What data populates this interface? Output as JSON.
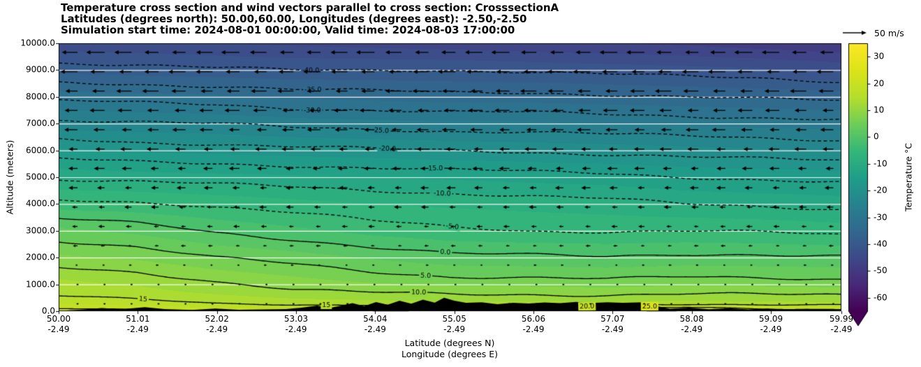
{
  "figure": {
    "title_line1": "Temperature cross section and wind vectors parallel to cross section: CrosssectionA",
    "title_line2": "Latitudes (degrees north): 50.00,60.00, Longitudes (degrees east): -2.50,-2.50",
    "title_line3": "Simulation start time: 2024-08-01 00:00:00, Valid time: 2024-08-03 17:00:00",
    "ylabel": "Altitude (meters)",
    "xlabel_line1": "Latitude (degrees N)",
    "xlabel_line2": "Longitude (degrees E)",
    "colorbar_label": "Temperature °C",
    "quiver_key_label": "50 m/s"
  },
  "chart_data": {
    "type": "heatmap",
    "title": "Temperature cross section and wind vectors parallel to cross section: CrosssectionA",
    "x_axis": {
      "label": "Latitude (degrees N)",
      "label2": "Longitude (degrees E)",
      "min": 50.0,
      "max": 59.99,
      "tick_labels_latitude": [
        "50.00",
        "51.01",
        "52.02",
        "53.03",
        "54.04",
        "55.05",
        "56.06",
        "57.07",
        "58.08",
        "59.09",
        "59.99"
      ],
      "tick_labels_longitude": [
        "-2.49",
        "-2.49",
        "-2.49",
        "-2.49",
        "-2.49",
        "-2.49",
        "-2.49",
        "-2.49",
        "-2.49",
        "-2.49",
        "-2.49"
      ]
    },
    "y_axis": {
      "label": "Altitude (meters)",
      "min": 0,
      "max": 10000,
      "tick_labels": [
        "0.0",
        "1000.0",
        "2000.0",
        "3000.0",
        "4000.0",
        "5000.0",
        "6000.0",
        "7000.0",
        "8000.0",
        "9000.0",
        "10000.0"
      ]
    },
    "colorbar": {
      "label": "Temperature °C",
      "min": -65,
      "max": 35,
      "tick_values": [
        30,
        20,
        10,
        0,
        -10,
        -20,
        -30,
        -40,
        -50,
        -60
      ],
      "tick_labels": [
        "30",
        "20",
        "10",
        "0",
        "-10",
        "-20",
        "-30",
        "-40",
        "-50",
        "-60"
      ],
      "extend": "min"
    },
    "colormap_stops": [
      "#440154",
      "#482878",
      "#3e4989",
      "#31688e",
      "#26828e",
      "#1f9e89",
      "#35b779",
      "#6ece58",
      "#b5de2b",
      "#dce319",
      "#fde725"
    ],
    "temperature_grid": {
      "latitudes": [
        50,
        51,
        52,
        53,
        54,
        55,
        56,
        57,
        58,
        59,
        60
      ],
      "altitudes_m": [
        0,
        300,
        700,
        1200,
        2000,
        3000,
        4000,
        5000,
        6000,
        7000,
        8000,
        9000,
        10000
      ],
      "values_c": [
        [
          22,
          21,
          20,
          19,
          20,
          21,
          22,
          24,
          26,
          23,
          22
        ],
        [
          17,
          16,
          15,
          14,
          13.5,
          13,
          13,
          13,
          13.5,
          13,
          13
        ],
        [
          14,
          13.5,
          12,
          10.5,
          10,
          9.5,
          9.3,
          9,
          9.5,
          9.3,
          9
        ],
        [
          12.5,
          11.5,
          9.5,
          8,
          6.5,
          5.5,
          5.3,
          5,
          5.5,
          5.3,
          5
        ],
        [
          8,
          7,
          5,
          3.8,
          2.2,
          0.8,
          0.6,
          0.3,
          0.8,
          0.6,
          0.3
        ],
        [
          3.2,
          1.8,
          -0.3,
          -1.8,
          -3.5,
          -4.5,
          -5,
          -5.2,
          -5,
          -5.3,
          -6
        ],
        [
          -4,
          -4.5,
          -5.5,
          -6.5,
          -7.5,
          -8,
          -8.5,
          -9,
          -10,
          -10.5,
          -11
        ],
        [
          -10.5,
          -11,
          -11.5,
          -12,
          -12.5,
          -13,
          -13.5,
          -14,
          -15,
          -15.5,
          -16
        ],
        [
          -17,
          -18,
          -18.5,
          -19,
          -19.5,
          -20,
          -20.5,
          -21,
          -21.5,
          -22,
          -22.5
        ],
        [
          -24,
          -24.5,
          -25,
          -26,
          -26.5,
          -27,
          -27,
          -27.5,
          -28,
          -28.5,
          -29
        ],
        [
          -31,
          -31.5,
          -32,
          -33,
          -33.5,
          -34,
          -34,
          -34.5,
          -35,
          -35.5,
          -36
        ],
        [
          -38.5,
          -39,
          -39.5,
          -40,
          -40,
          -40,
          -40.5,
          -41,
          -41.5,
          -42,
          -43
        ],
        [
          -44,
          -44.5,
          -45,
          -45.5,
          -46,
          -46.5,
          -47,
          -47.5,
          -48,
          -49,
          -50
        ]
      ]
    },
    "contours": {
      "levels": [
        -40,
        -35,
        -30,
        -25,
        -20,
        -15,
        -10,
        -5,
        0,
        5,
        10,
        15,
        20,
        25
      ],
      "negative_style": "dashed",
      "positive_style": "solid",
      "labels": [
        {
          "level": -40,
          "text": "-40.0",
          "x_fracs": [
            0.322
          ]
        },
        {
          "level": -35,
          "text": "-35.0",
          "x_fracs": [
            0.325
          ]
        },
        {
          "level": -30,
          "text": "-30.0",
          "x_fracs": [
            0.324
          ]
        },
        {
          "level": -25,
          "text": "-25.0",
          "x_fracs": [
            0.411
          ]
        },
        {
          "level": -20,
          "text": "-20.0",
          "x_fracs": [
            0.42
          ]
        },
        {
          "level": -15,
          "text": "-15.0",
          "x_fracs": [
            0.48
          ]
        },
        {
          "level": -10,
          "text": "-10.0",
          "x_fracs": [
            0.49
          ]
        },
        {
          "level": -5,
          "text": "-5.0",
          "x_fracs": [
            0.503
          ]
        },
        {
          "level": 0,
          "text": "0.0",
          "x_fracs": [
            0.494
          ]
        },
        {
          "level": 5,
          "text": "5.0",
          "x_fracs": [
            0.469
          ]
        },
        {
          "level": 10,
          "text": "10.0",
          "x_fracs": [
            0.46
          ]
        },
        {
          "level": 15,
          "text": "15",
          "x_fracs": [
            0.108,
            0.342
          ]
        },
        {
          "level": 20,
          "text": "20.0",
          "x_fracs": [
            0.675
          ]
        },
        {
          "level": 25,
          "text": "25.0",
          "x_fracs": [
            0.755
          ]
        }
      ]
    },
    "terrain_profile": [
      [
        50,
        15
      ],
      [
        50.3,
        60
      ],
      [
        50.55,
        120
      ],
      [
        50.8,
        70
      ],
      [
        51.1,
        150
      ],
      [
        51.35,
        80
      ],
      [
        51.7,
        45
      ],
      [
        52.0,
        95
      ],
      [
        52.3,
        55
      ],
      [
        52.6,
        65
      ],
      [
        52.9,
        80
      ],
      [
        53.1,
        130
      ],
      [
        53.3,
        210
      ],
      [
        53.45,
        120
      ],
      [
        53.6,
        200
      ],
      [
        53.75,
        300
      ],
      [
        53.9,
        190
      ],
      [
        54.05,
        340
      ],
      [
        54.2,
        240
      ],
      [
        54.35,
        390
      ],
      [
        54.5,
        280
      ],
      [
        54.65,
        430
      ],
      [
        54.8,
        320
      ],
      [
        54.92,
        500
      ],
      [
        55.05,
        390
      ],
      [
        55.2,
        310
      ],
      [
        55.4,
        330
      ],
      [
        55.6,
        260
      ],
      [
        55.8,
        310
      ],
      [
        56.0,
        285
      ],
      [
        56.2,
        325
      ],
      [
        56.4,
        300
      ],
      [
        56.6,
        345
      ],
      [
        56.8,
        305
      ],
      [
        57.0,
        335
      ],
      [
        57.2,
        310
      ],
      [
        57.45,
        330
      ],
      [
        57.6,
        210
      ],
      [
        57.8,
        90
      ],
      [
        58.05,
        130
      ],
      [
        58.3,
        70
      ],
      [
        58.55,
        110
      ],
      [
        58.8,
        65
      ],
      [
        59.05,
        95
      ],
      [
        59.3,
        60
      ],
      [
        59.55,
        85
      ],
      [
        59.8,
        50
      ],
      [
        59.99,
        45
      ]
    ],
    "wind": {
      "direction": "left",
      "columns": 29,
      "key_speed_ms": 50,
      "rows": [
        {
          "altitude_m": 9660,
          "speed_ms": 38
        },
        {
          "altitude_m": 8938,
          "speed_ms": 36
        },
        {
          "altitude_m": 8216,
          "speed_ms": 34
        },
        {
          "altitude_m": 7494,
          "speed_ms": 31
        },
        {
          "altitude_m": 6772,
          "speed_ms": 28
        },
        {
          "altitude_m": 6050,
          "speed_ms": 25
        },
        {
          "altitude_m": 5328,
          "speed_ms": 22
        },
        {
          "altitude_m": 4606,
          "speed_ms": 19
        },
        {
          "altitude_m": 3884,
          "speed_ms": 16
        },
        {
          "altitude_m": 3162,
          "speed_ms": 13
        },
        {
          "altitude_m": 2440,
          "speed_ms": 10
        },
        {
          "altitude_m": 1718,
          "speed_ms": 6
        },
        {
          "altitude_m": 996,
          "speed_ms": 3.5
        },
        {
          "altitude_m": 274,
          "speed_ms": 2
        }
      ]
    }
  }
}
